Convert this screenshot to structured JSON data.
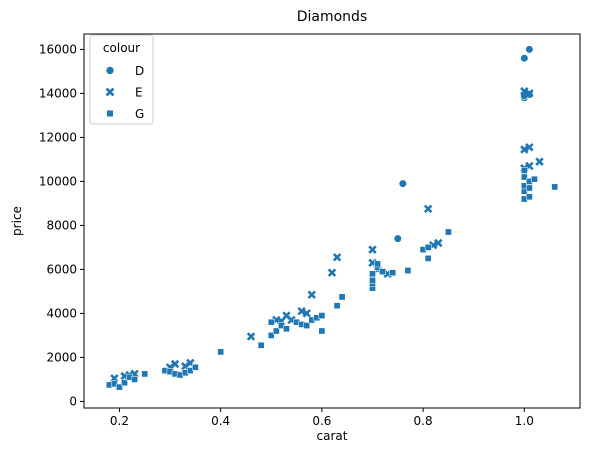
{
  "chart_data": {
    "type": "scatter",
    "title": "Diamonds",
    "xlabel": "carat",
    "ylabel": "price",
    "xlim": [
      0.13,
      1.11
    ],
    "ylim": [
      -300,
      16700
    ],
    "xticks": [
      0.2,
      0.4,
      0.6,
      0.8,
      1.0
    ],
    "xtick_labels": [
      "0.2",
      "0.4",
      "0.6",
      "0.8",
      "1.0"
    ],
    "yticks": [
      0,
      2000,
      4000,
      6000,
      8000,
      10000,
      12000,
      14000,
      16000
    ],
    "ytick_labels": [
      "0",
      "2000",
      "4000",
      "6000",
      "8000",
      "10000",
      "12000",
      "14000",
      "16000"
    ],
    "grid": false,
    "legend": {
      "title": "colour",
      "placement": "top-left"
    },
    "marker_color": "#1f77b4",
    "series": [
      {
        "name": "D",
        "marker": "circle",
        "points": [
          [
            0.75,
            7400
          ],
          [
            0.76,
            9900
          ],
          [
            1.0,
            15600
          ],
          [
            1.01,
            16000
          ],
          [
            1.0,
            13800
          ],
          [
            1.01,
            13950
          ],
          [
            1.0,
            13900
          ]
        ]
      },
      {
        "name": "E",
        "marker": "x",
        "points": [
          [
            0.19,
            1050
          ],
          [
            0.21,
            1150
          ],
          [
            0.22,
            1200
          ],
          [
            0.23,
            1250
          ],
          [
            0.3,
            1550
          ],
          [
            0.31,
            1700
          ],
          [
            0.33,
            1600
          ],
          [
            0.34,
            1750
          ],
          [
            0.46,
            2950
          ],
          [
            0.51,
            3700
          ],
          [
            0.52,
            3650
          ],
          [
            0.53,
            3900
          ],
          [
            0.54,
            3700
          ],
          [
            0.56,
            4100
          ],
          [
            0.57,
            4000
          ],
          [
            0.58,
            4850
          ],
          [
            0.62,
            5850
          ],
          [
            0.63,
            6550
          ],
          [
            0.7,
            6900
          ],
          [
            0.7,
            6300
          ],
          [
            0.71,
            6000
          ],
          [
            0.73,
            5800
          ],
          [
            0.81,
            8750
          ],
          [
            0.82,
            7100
          ],
          [
            0.83,
            7200
          ],
          [
            1.0,
            14100
          ],
          [
            1.01,
            14000
          ],
          [
            1.0,
            11450
          ],
          [
            1.01,
            11550
          ],
          [
            1.0,
            10600
          ],
          [
            1.01,
            10700
          ],
          [
            1.03,
            10900
          ]
        ]
      },
      {
        "name": "G",
        "marker": "square",
        "points": [
          [
            0.18,
            750
          ],
          [
            0.19,
            800
          ],
          [
            0.2,
            650
          ],
          [
            0.21,
            850
          ],
          [
            0.22,
            1100
          ],
          [
            0.23,
            1000
          ],
          [
            0.25,
            1250
          ],
          [
            0.29,
            1400
          ],
          [
            0.3,
            1350
          ],
          [
            0.31,
            1250
          ],
          [
            0.32,
            1200
          ],
          [
            0.33,
            1300
          ],
          [
            0.34,
            1400
          ],
          [
            0.35,
            1550
          ],
          [
            0.4,
            2250
          ],
          [
            0.48,
            2550
          ],
          [
            0.5,
            3000
          ],
          [
            0.5,
            3600
          ],
          [
            0.51,
            3200
          ],
          [
            0.52,
            3450
          ],
          [
            0.53,
            3300
          ],
          [
            0.55,
            3600
          ],
          [
            0.56,
            3500
          ],
          [
            0.57,
            3450
          ],
          [
            0.58,
            3700
          ],
          [
            0.59,
            3800
          ],
          [
            0.6,
            3200
          ],
          [
            0.6,
            3900
          ],
          [
            0.63,
            4350
          ],
          [
            0.64,
            4750
          ],
          [
            0.7,
            5150
          ],
          [
            0.7,
            5350
          ],
          [
            0.7,
            5500
          ],
          [
            0.7,
            5800
          ],
          [
            0.71,
            6100
          ],
          [
            0.71,
            6250
          ],
          [
            0.72,
            5900
          ],
          [
            0.74,
            5850
          ],
          [
            0.77,
            5950
          ],
          [
            0.8,
            6900
          ],
          [
            0.81,
            6500
          ],
          [
            0.81,
            7000
          ],
          [
            0.85,
            7700
          ],
          [
            1.0,
            9200
          ],
          [
            1.0,
            9550
          ],
          [
            1.0,
            9800
          ],
          [
            1.0,
            10200
          ],
          [
            1.0,
            10500
          ],
          [
            1.01,
            9300
          ],
          [
            1.01,
            9700
          ],
          [
            1.01,
            10000
          ],
          [
            1.02,
            10100
          ],
          [
            1.06,
            9750
          ]
        ]
      }
    ]
  }
}
